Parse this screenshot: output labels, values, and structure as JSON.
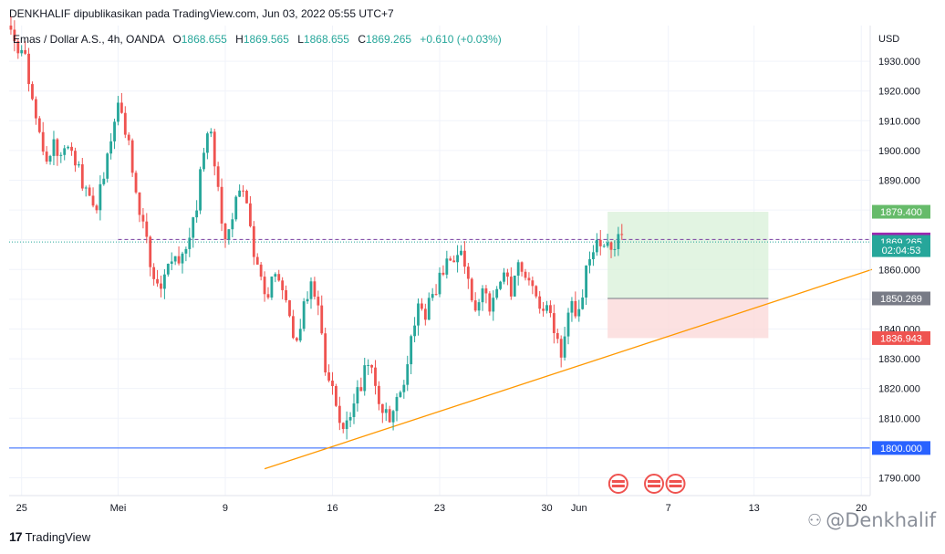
{
  "publication_line": "DENKHALIF dipublikasikan pada TradingView.com, Jun 03, 2022 05:55 UTC+7",
  "legend": {
    "symbol": "Emas / Dollar A.S., 4h, OANDA",
    "open_label": "O",
    "open": "1868.655",
    "high_label": "H",
    "high": "1869.565",
    "low_label": "L",
    "low": "1868.655",
    "close_label": "C",
    "close": "1869.265",
    "change": "+0.610 (+0.03%)"
  },
  "chart_data": {
    "type": "candlestick",
    "currency_label": "USD",
    "y_range": [
      1784,
      1942
    ],
    "y_ticks": [
      1790,
      1800,
      1810,
      1820,
      1830,
      1840,
      1850,
      1860,
      1870,
      1880,
      1890,
      1900,
      1910,
      1920,
      1930
    ],
    "y_tick_labels": [
      "1790.000",
      "1800.000",
      "1810.000",
      "1820.000",
      "1830.000",
      "1840.000",
      "1850.000",
      "1860.000",
      "1870.000",
      "1880.000",
      "1890.000",
      "1900.000",
      "1910.000",
      "1920.000",
      "1930.000"
    ],
    "x_ticks": [
      {
        "label": "25",
        "bar": 3
      },
      {
        "label": "Mei",
        "bar": 30
      },
      {
        "label": "9",
        "bar": 60
      },
      {
        "label": "16",
        "bar": 90
      },
      {
        "label": "23",
        "bar": 120
      },
      {
        "label": "30",
        "bar": 150
      },
      {
        "label": "Jun",
        "bar": 159
      },
      {
        "label": "7",
        "bar": 184
      },
      {
        "label": "13",
        "bar": 208
      },
      {
        "label": "20",
        "bar": 238
      }
    ],
    "bars_total": 241,
    "bar_count_drawn": 172,
    "close_path": [
      [
        0,
        1940
      ],
      [
        2,
        1935
      ],
      [
        4,
        1930
      ],
      [
        6,
        1918
      ],
      [
        8,
        1905
      ],
      [
        10,
        1895
      ],
      [
        12,
        1902
      ],
      [
        14,
        1898
      ],
      [
        16,
        1903
      ],
      [
        18,
        1896
      ],
      [
        20,
        1890
      ],
      [
        22,
        1884
      ],
      [
        24,
        1879
      ],
      [
        26,
        1893
      ],
      [
        28,
        1903
      ],
      [
        30,
        1918
      ],
      [
        32,
        1908
      ],
      [
        34,
        1895
      ],
      [
        36,
        1880
      ],
      [
        38,
        1868
      ],
      [
        40,
        1855
      ],
      [
        42,
        1852
      ],
      [
        44,
        1862
      ],
      [
        46,
        1866
      ],
      [
        48,
        1864
      ],
      [
        50,
        1868
      ],
      [
        52,
        1882
      ],
      [
        54,
        1900
      ],
      [
        56,
        1908
      ],
      [
        58,
        1885
      ],
      [
        60,
        1870
      ],
      [
        62,
        1878
      ],
      [
        64,
        1888
      ],
      [
        66,
        1880
      ],
      [
        68,
        1866
      ],
      [
        70,
        1855
      ],
      [
        72,
        1852
      ],
      [
        74,
        1858
      ],
      [
        76,
        1852
      ],
      [
        78,
        1842
      ],
      [
        80,
        1834
      ],
      [
        82,
        1847
      ],
      [
        84,
        1855
      ],
      [
        86,
        1845
      ],
      [
        88,
        1828
      ],
      [
        90,
        1818
      ],
      [
        92,
        1806
      ],
      [
        94,
        1808
      ],
      [
        96,
        1814
      ],
      [
        98,
        1822
      ],
      [
        100,
        1830
      ],
      [
        102,
        1822
      ],
      [
        104,
        1812
      ],
      [
        106,
        1810
      ],
      [
        108,
        1816
      ],
      [
        110,
        1820
      ],
      [
        112,
        1838
      ],
      [
        114,
        1846
      ],
      [
        116,
        1844
      ],
      [
        118,
        1852
      ],
      [
        120,
        1856
      ],
      [
        122,
        1864
      ],
      [
        124,
        1860
      ],
      [
        126,
        1868
      ],
      [
        128,
        1858
      ],
      [
        130,
        1846
      ],
      [
        132,
        1852
      ],
      [
        134,
        1848
      ],
      [
        136,
        1856
      ],
      [
        138,
        1860
      ],
      [
        140,
        1853
      ],
      [
        142,
        1862
      ],
      [
        144,
        1858
      ],
      [
        146,
        1852
      ],
      [
        148,
        1846
      ],
      [
        150,
        1848
      ],
      [
        152,
        1838
      ],
      [
        154,
        1832
      ],
      [
        156,
        1846
      ],
      [
        158,
        1847
      ],
      [
        160,
        1852
      ],
      [
        162,
        1866
      ],
      [
        164,
        1868
      ],
      [
        165,
        1869.265
      ]
    ],
    "horizontal_lines": [
      {
        "name": "support",
        "value": 1800.0,
        "color": "#2962ff"
      },
      {
        "name": "current-price",
        "value": 1869.265,
        "color": "#26a69a",
        "style": "dotted"
      },
      {
        "name": "level-1870",
        "value": 1870.103,
        "color": "#7b3fa0",
        "style": "dashed"
      }
    ],
    "trendline": {
      "color": "#ff9800",
      "start": {
        "bar": 71,
        "value": 1793
      },
      "end": {
        "bar": 241,
        "value": 1860
      }
    },
    "position_tool": {
      "start_bar": 167,
      "end_bar": 212,
      "target": 1879.4,
      "entry": 1850.269,
      "stop": 1836.943,
      "profit_color": "#d8f0d8",
      "loss_color": "#fbd9d9",
      "entry_color": "#787b86"
    },
    "price_labels": [
      {
        "text": "1879.400",
        "value": 1879.4,
        "bg": "#66bb6a",
        "fg": "#ffffff"
      },
      {
        "text": "1870.103",
        "value": 1870.103,
        "bg": "#9c27b0",
        "fg": "#ffffff"
      },
      {
        "text": "1869.265",
        "value": 1869.265,
        "bg": "#26a69a",
        "fg": "#ffffff"
      },
      {
        "text": "02:04:53",
        "value": 1866.5,
        "bg": "#26a69a",
        "fg": "#ffffff"
      },
      {
        "text": "1850.269",
        "value": 1850.269,
        "bg": "#787b86",
        "fg": "#ffffff"
      },
      {
        "text": "1836.943",
        "value": 1836.943,
        "bg": "#ef5350",
        "fg": "#ffffff"
      },
      {
        "text": "1800.000",
        "value": 1800.0,
        "bg": "#2962ff",
        "fg": "#ffffff"
      }
    ],
    "event_flags": [
      {
        "bar": 170
      },
      {
        "bar": 180
      },
      {
        "bar": 186
      }
    ],
    "up_color": "#26a69a",
    "down_color": "#ef5350"
  },
  "footer": {
    "logo_mark": "17",
    "logo_text": "TradingView"
  },
  "watermark": {
    "glyph": "⚇",
    "text": "@Denkhalif"
  }
}
